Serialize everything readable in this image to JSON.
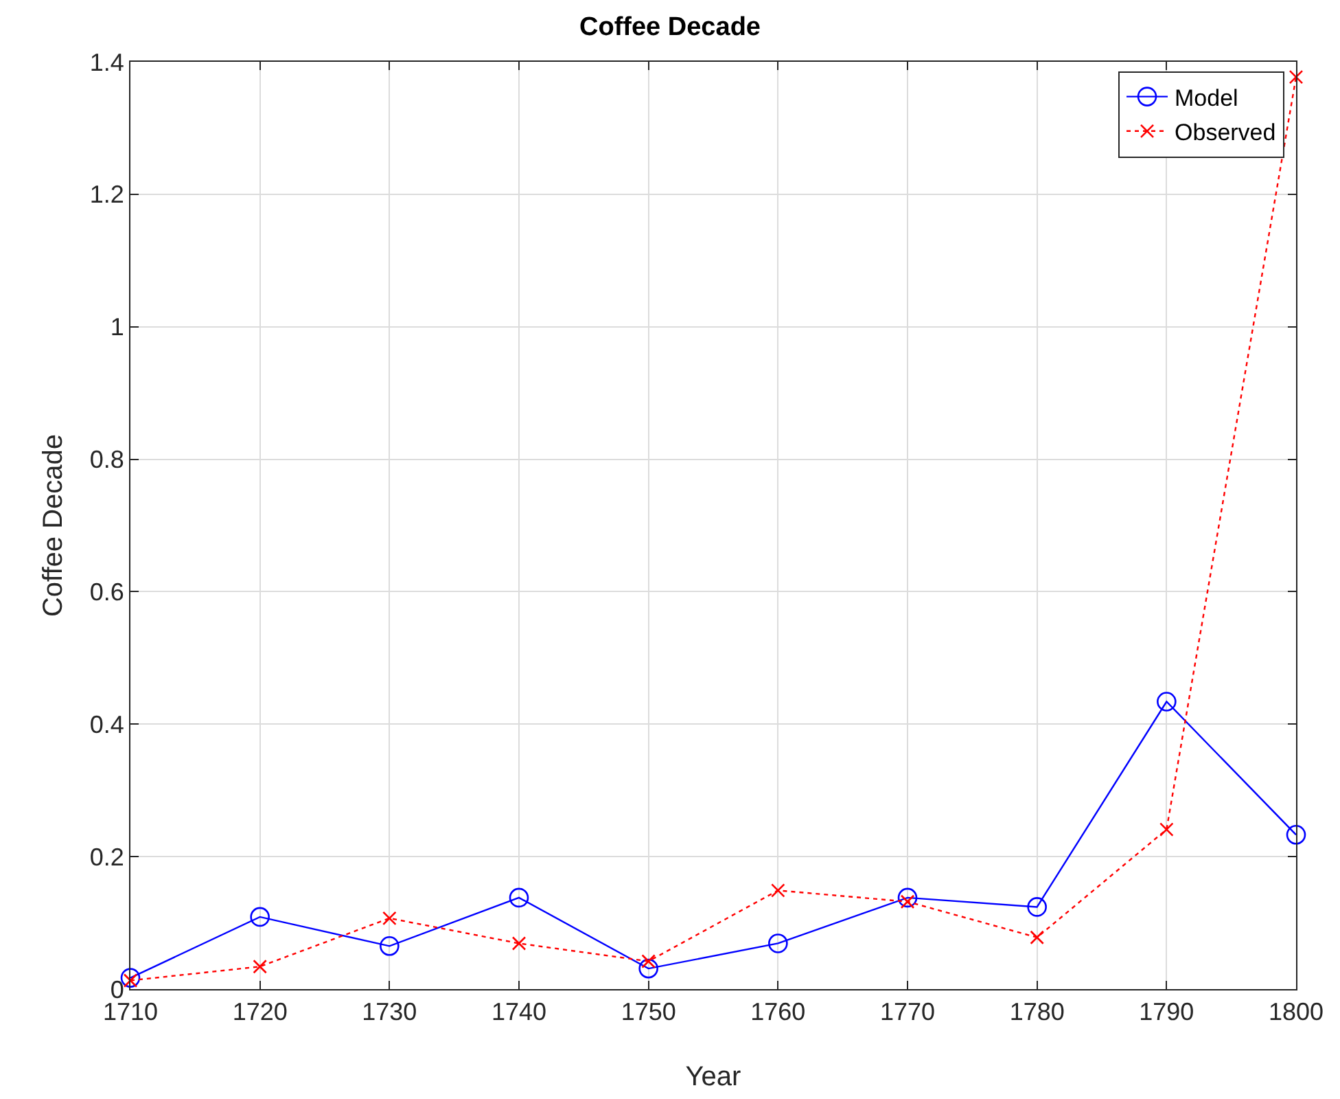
{
  "chart_data": {
    "type": "line",
    "title": "Coffee Decade",
    "xlabel": "Year",
    "ylabel": "Coffee Decade",
    "x": [
      1710,
      1720,
      1730,
      1740,
      1750,
      1760,
      1770,
      1780,
      1790,
      1800
    ],
    "series": [
      {
        "name": "Model",
        "color": "#0000ff",
        "marker": "circle",
        "line_style": "solid",
        "values": [
          0.017,
          0.109,
          0.065,
          0.138,
          0.031,
          0.069,
          0.138,
          0.124,
          0.434,
          0.233
        ]
      },
      {
        "name": "Observed",
        "color": "#ff0000",
        "marker": "cross",
        "line_style": "dotted",
        "values": [
          0.013,
          0.034,
          0.107,
          0.069,
          0.042,
          0.149,
          0.132,
          0.078,
          0.241,
          1.377
        ]
      }
    ],
    "xlim": [
      1710,
      1800
    ],
    "xticks": [
      1710,
      1720,
      1730,
      1740,
      1750,
      1760,
      1770,
      1780,
      1790,
      1800
    ],
    "ylim": [
      0,
      1.4
    ],
    "yticks": [
      0,
      0.2,
      0.4,
      0.6,
      0.8,
      1,
      1.2,
      1.4
    ],
    "grid": true,
    "legend": "top right"
  }
}
